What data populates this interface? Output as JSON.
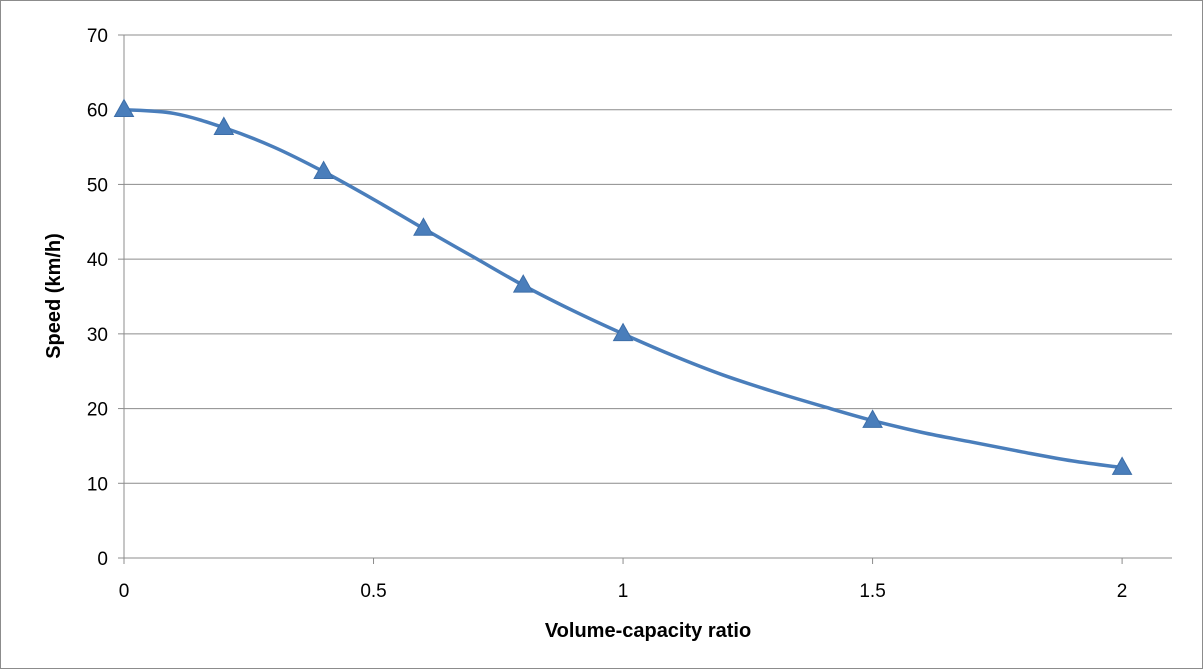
{
  "chart_data": {
    "type": "line",
    "title": "",
    "xlabel": "Volume-capacity ratio",
    "ylabel": "Speed (km/h)",
    "xlim": [
      0,
      2.1
    ],
    "ylim": [
      0,
      70
    ],
    "x_ticks": [
      "0",
      "0.5",
      "1",
      "1.5",
      "2"
    ],
    "y_ticks": [
      "0",
      "10",
      "20",
      "30",
      "40",
      "50",
      "60",
      "70"
    ],
    "grid": "horizontal",
    "legend": "none",
    "series": [
      {
        "color": "#4a7ebb",
        "marker": "triangle",
        "curve_x": [
          0,
          0.1,
          0.2,
          0.3,
          0.4,
          0.5,
          0.6,
          0.7,
          0.8,
          0.9,
          1.0,
          1.1,
          1.2,
          1.3,
          1.4,
          1.5,
          1.6,
          1.7,
          1.8,
          1.9,
          2.0
        ],
        "curve_y": [
          60,
          59.5,
          57.6,
          55,
          51.7,
          48,
          44.1,
          40.3,
          36.5,
          33.1,
          30,
          27.1,
          24.5,
          22.3,
          20.3,
          18.4,
          16.8,
          15.5,
          14.2,
          13,
          12.1
        ],
        "marker_x": [
          0,
          0.2,
          0.4,
          0.6,
          0.8,
          1.0,
          1.5,
          2.0
        ],
        "marker_y": [
          60,
          57.6,
          51.7,
          44.1,
          36.5,
          30,
          18.4,
          12.1
        ]
      }
    ]
  }
}
